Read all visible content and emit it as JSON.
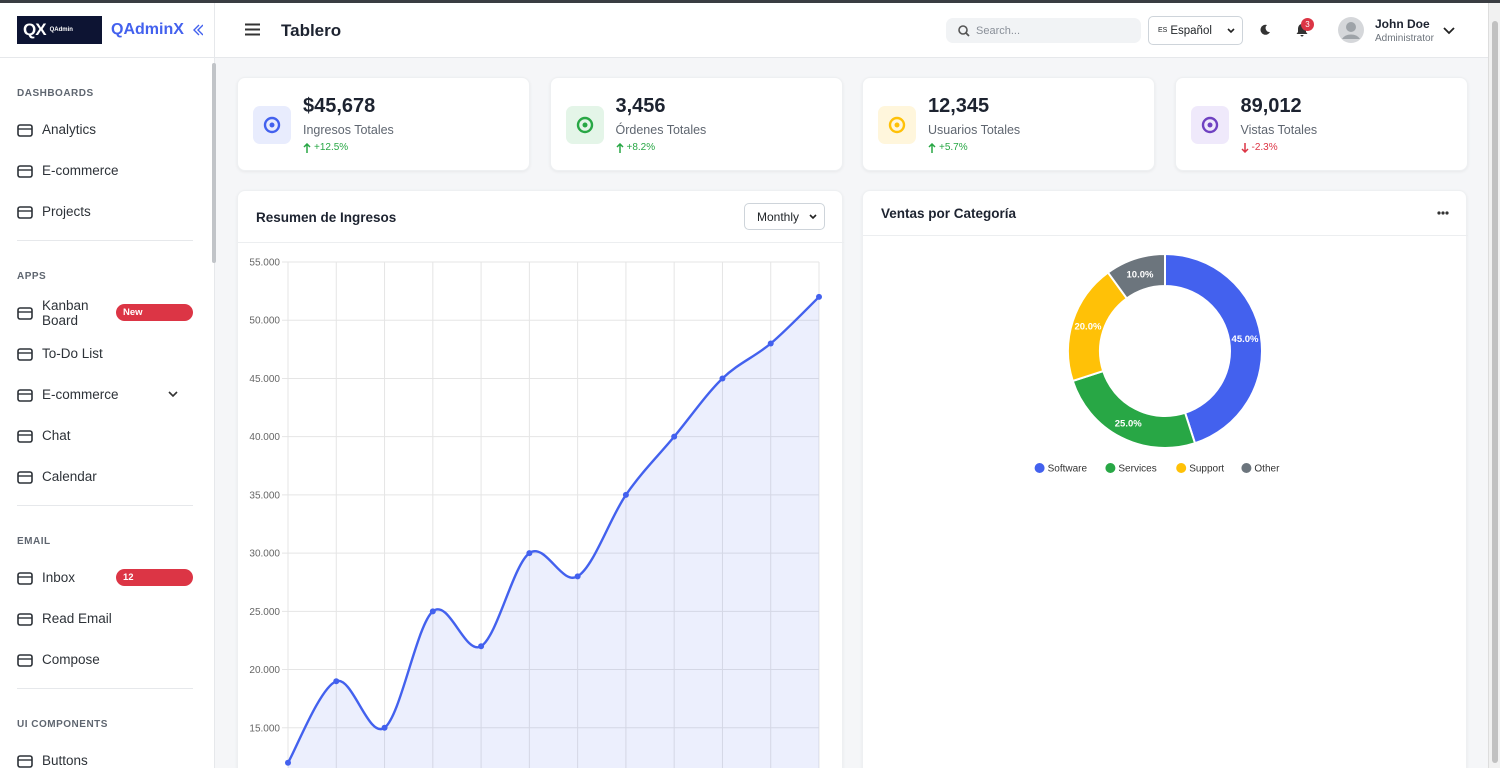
{
  "logo": {
    "mark": "QX",
    "text": "QAdmin"
  },
  "brand": "QAdminX",
  "header": {
    "title": "Tablero",
    "search_placeholder": "Search...",
    "language_code": "ES",
    "language": "Español",
    "notifications": "3",
    "user_name": "John Doe",
    "user_role": "Administrator"
  },
  "sidebar": [
    {
      "title": "DASHBOARDS",
      "items": [
        {
          "label": "Analytics"
        },
        {
          "label": "E-commerce"
        },
        {
          "label": "Projects"
        }
      ]
    },
    {
      "title": "APPS",
      "items": [
        {
          "label": "Kanban Board",
          "badge": "New"
        },
        {
          "label": "To-Do List"
        },
        {
          "label": "E-commerce",
          "submenu": true
        },
        {
          "label": "Chat"
        },
        {
          "label": "Calendar"
        }
      ]
    },
    {
      "title": "EMAIL",
      "items": [
        {
          "label": "Inbox",
          "badge": "12"
        },
        {
          "label": "Read Email"
        },
        {
          "label": "Compose"
        }
      ]
    },
    {
      "title": "UI COMPONENTS",
      "items": [
        {
          "label": "Buttons"
        }
      ]
    }
  ],
  "stats": [
    {
      "value": "$45,678",
      "label": "Ingresos Totales",
      "change": "+12.5%",
      "direction": "up",
      "color": "#4361ee",
      "background": "#e8ecfd"
    },
    {
      "value": "3,456",
      "label": "Órdenes Totales",
      "change": "+8.2%",
      "direction": "up",
      "color": "#28a745",
      "background": "#e4f5e8"
    },
    {
      "value": "12,345",
      "label": "Usuarios Totales",
      "change": "+5.7%",
      "direction": "up",
      "color": "#ffc107",
      "background": "#fff6dc"
    },
    {
      "value": "89,012",
      "label": "Vistas Totales",
      "change": "-2.3%",
      "direction": "down",
      "color": "#6f42c1",
      "background": "#efe9fb"
    }
  ],
  "chart_data": [
    {
      "type": "line",
      "title": "Resumen de Ingresos",
      "period": "Monthly",
      "categories": [
        null,
        null,
        null,
        null,
        null,
        null,
        null,
        null,
        null,
        null,
        null,
        null
      ],
      "values": [
        12000,
        19000,
        15000,
        25000,
        22000,
        30000,
        28000,
        35000,
        40000,
        45000,
        48000,
        52000
      ],
      "color": "#4361ee",
      "fill": true,
      "smooth": true,
      "grid": true,
      "ylim": [
        10000,
        55000
      ],
      "yticks": [
        {
          "value": 15000,
          "label": "15.000"
        },
        {
          "value": 20000,
          "label": "20.000"
        },
        {
          "value": 25000,
          "label": "25.000"
        },
        {
          "value": 30000,
          "label": "30.000"
        },
        {
          "value": 35000,
          "label": "35.000"
        },
        {
          "value": 40000,
          "label": "40.000"
        },
        {
          "value": 45000,
          "label": "45.000"
        },
        {
          "value": 50000,
          "label": "50.000"
        },
        {
          "value": 55000,
          "label": "55.000"
        }
      ]
    },
    {
      "type": "doughnut",
      "title": "Ventas por Categoría",
      "categories": [
        "Software",
        "Services",
        "Support",
        "Other"
      ],
      "values": [
        45,
        25,
        20,
        10
      ],
      "value_labels": [
        "45.0%",
        "25.0%",
        "20.0%",
        "10.0%"
      ],
      "colors": [
        "#4361ee",
        "#28a745",
        "#ffc107",
        "#6c757d"
      ],
      "legend": "bottom"
    }
  ]
}
